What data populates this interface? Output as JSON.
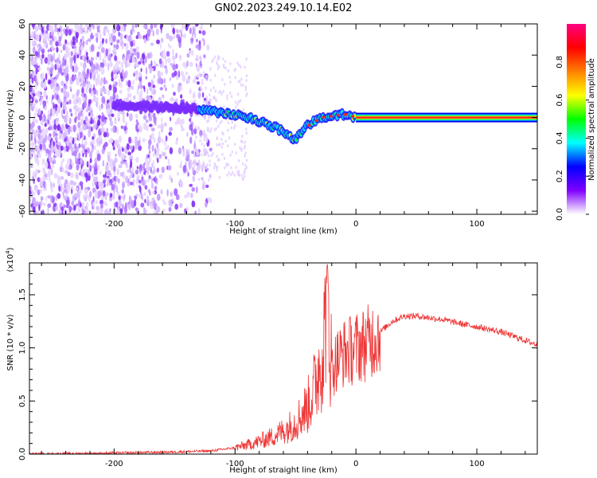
{
  "title": "GN02.2023.249.10.14.E02",
  "chart_data": [
    {
      "type": "heatmap",
      "title": "",
      "xlabel": "Height of straight line (km)",
      "ylabel": "Frequency (Hz)",
      "xlim": [
        -270,
        150
      ],
      "ylim": [
        -62,
        60
      ],
      "xticks": [
        -200,
        -100,
        0,
        100
      ],
      "yticks": [
        -60,
        -40,
        -20,
        0,
        20,
        40,
        60
      ],
      "xtick_labels": [
        "-200",
        "-100",
        "0",
        "100"
      ],
      "ytick_labels": [
        "-60",
        "-40",
        "-20",
        "0",
        "20",
        "40",
        "60"
      ],
      "colorbar": {
        "label": "Normalized spectral amplitude",
        "range": [
          0,
          1
        ],
        "ticks": [
          0.0,
          0.2,
          0.4,
          0.6,
          0.8
        ],
        "tick_labels": [
          "0.0",
          "0.2",
          "0.4",
          "0.6",
          "0.8"
        ],
        "colors": [
          "#ffffff",
          "#8000ff",
          "#0000ff",
          "#00ffff",
          "#00ff00",
          "#ffff00",
          "#ff8000",
          "#ff0000",
          "#ff0080"
        ]
      },
      "ridge": {
        "x": [
          -200,
          -170,
          -140,
          -120,
          -100,
          -85,
          -75,
          -65,
          -58,
          -50,
          -45,
          -40,
          -30,
          -20,
          -10,
          0,
          150
        ],
        "y": [
          8,
          7,
          6,
          4,
          2,
          -1,
          -4,
          -7,
          -10,
          -14,
          -10,
          -5,
          0,
          1,
          2,
          0,
          0
        ]
      }
    },
    {
      "type": "line",
      "title": "",
      "xlabel": "Height of straight line (km)",
      "ylabel": "SNR (10 * v/v)",
      "y_multiplier": "(x10",
      "y_multiplier_exp": "4",
      "y_multiplier_close": ")",
      "xlim": [
        -270,
        150
      ],
      "ylim": [
        0,
        1.8
      ],
      "xticks": [
        -200,
        -100,
        0,
        100
      ],
      "yticks": [
        0.0,
        0.5,
        1.0,
        1.5
      ],
      "xtick_labels": [
        "-200",
        "-100",
        "0",
        "100"
      ],
      "ytick_labels": [
        "0.0",
        "0.5",
        "1.0",
        "1.5"
      ],
      "series": [
        {
          "color": "#ee3333",
          "x": [
            -270,
            -200,
            -150,
            -120,
            -100,
            -85,
            -70,
            -60,
            -50,
            -40,
            -35,
            -30,
            -26,
            -24,
            -22,
            -20,
            -15,
            -10,
            0,
            10,
            20,
            30,
            40,
            50,
            70,
            90,
            100,
            120,
            140,
            150
          ],
          "y": [
            0.0,
            0.01,
            0.02,
            0.03,
            0.06,
            0.1,
            0.16,
            0.22,
            0.3,
            0.45,
            0.6,
            0.85,
            1.1,
            1.78,
            1.2,
            0.8,
            0.9,
            0.95,
            1.0,
            1.05,
            1.15,
            1.25,
            1.3,
            1.3,
            1.27,
            1.22,
            1.2,
            1.15,
            1.07,
            1.03
          ]
        }
      ]
    }
  ]
}
